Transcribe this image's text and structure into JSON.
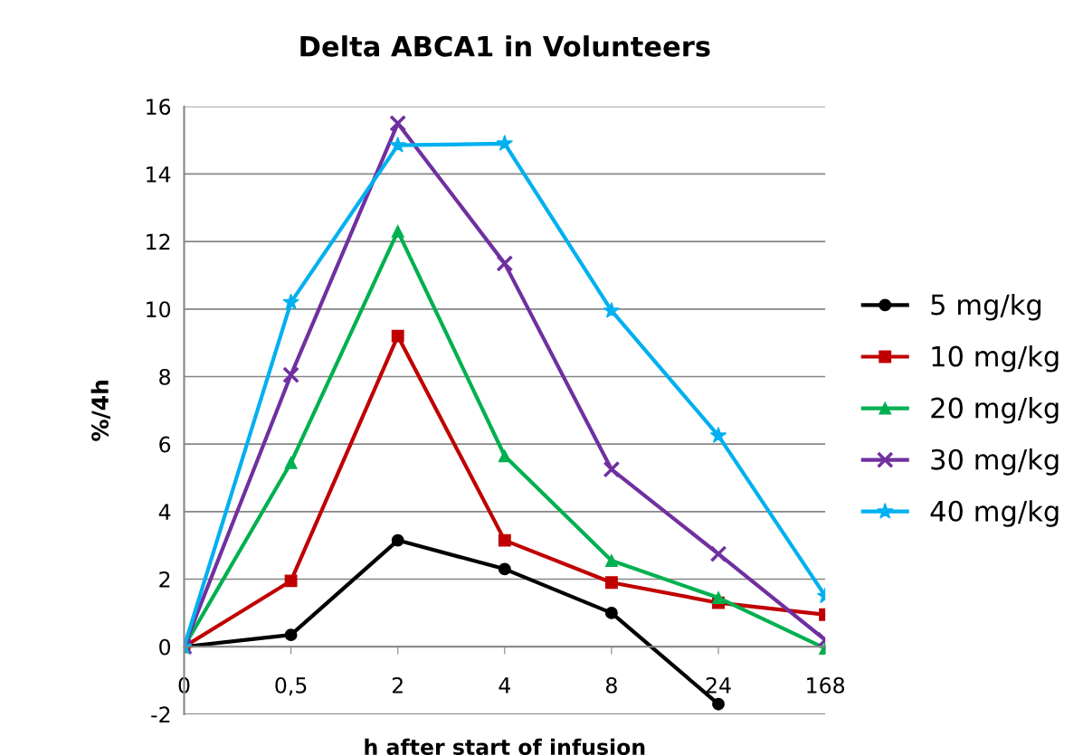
{
  "chart_data": {
    "type": "line",
    "title": "Delta ABCA1 in Volunteers",
    "xlabel": "h after start of infusion",
    "ylabel": "%/4h",
    "categories": [
      "0",
      "0,5",
      "2",
      "4",
      "8",
      "24",
      "168"
    ],
    "ylim": [
      -2,
      16
    ],
    "yticks": [
      -2,
      0,
      2,
      4,
      6,
      8,
      10,
      12,
      14,
      16
    ],
    "grid": "y",
    "legend": "right",
    "series": [
      {
        "name": "5 mg/kg",
        "color": "#000000",
        "marker": "circle",
        "values": [
          0,
          0.35,
          3.15,
          2.3,
          1.0,
          -1.7,
          null
        ]
      },
      {
        "name": "10 mg/kg",
        "color": "#c00000",
        "marker": "square",
        "values": [
          0,
          1.95,
          9.2,
          3.15,
          1.9,
          1.3,
          0.95
        ]
      },
      {
        "name": "20 mg/kg",
        "color": "#00b050",
        "marker": "triangle",
        "values": [
          0,
          5.45,
          12.3,
          5.65,
          2.55,
          1.45,
          -0.05
        ]
      },
      {
        "name": "30 mg/kg",
        "color": "#7030a0",
        "marker": "cross",
        "values": [
          0,
          8.05,
          15.5,
          11.35,
          5.25,
          2.75,
          0.2
        ]
      },
      {
        "name": "40 mg/kg",
        "color": "#00b0f0",
        "marker": "star",
        "values": [
          0,
          10.2,
          14.85,
          14.9,
          9.95,
          6.25,
          1.5
        ]
      }
    ]
  }
}
